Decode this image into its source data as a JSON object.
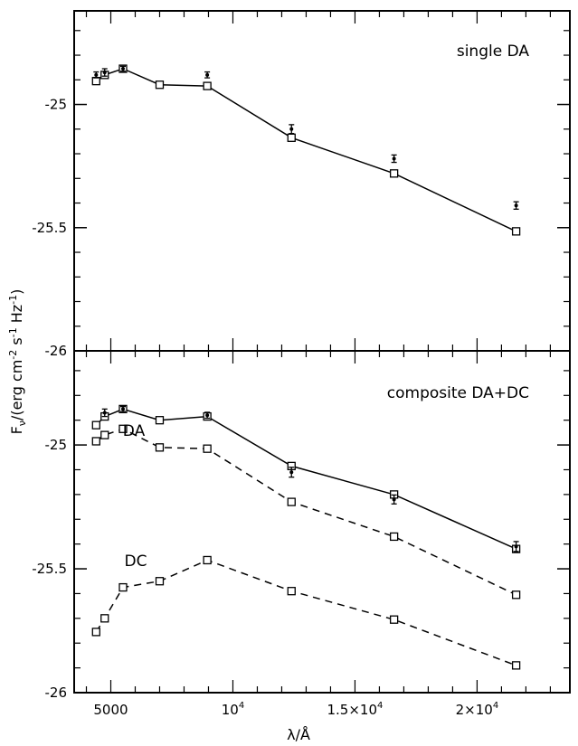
{
  "chart_data": [
    {
      "type": "line",
      "panel": "top",
      "annotation": "single DA",
      "ylim": [
        -26.0,
        -24.62
      ],
      "yticks": [
        -26,
        -25.5,
        -25
      ],
      "ytick_labels": [
        "-26",
        "-25.5",
        "-25"
      ],
      "xlim": [
        3500,
        23800
      ],
      "observed": {
        "x": [
          4400,
          4750,
          5500,
          8950,
          12400,
          16600,
          21600
        ],
        "y": [
          -24.88,
          -24.87,
          -24.855,
          -24.88,
          -25.1,
          -25.22,
          -25.41
        ],
        "err": [
          0.012,
          0.015,
          0.01,
          0.012,
          0.018,
          0.015,
          0.015
        ]
      },
      "series": [
        {
          "name": "",
          "style": "solid",
          "x": [
            4400,
            4750,
            5500,
            7000,
            8950,
            12400,
            16600,
            21600
          ],
          "y": [
            -24.905,
            -24.88,
            -24.855,
            -24.92,
            -24.925,
            -25.135,
            -25.28,
            -25.515
          ]
        }
      ]
    },
    {
      "type": "line",
      "panel": "bottom",
      "annotation": "composite DA+DC",
      "ylim": [
        -26.0,
        -24.62
      ],
      "yticks": [
        -26,
        -25.5,
        -25
      ],
      "ytick_labels": [
        "-26",
        "-25.5",
        "-25"
      ],
      "xlim": [
        3500,
        23800
      ],
      "observed": {
        "x": [
          4750,
          5500,
          8950,
          12400,
          16600,
          21600
        ],
        "y": [
          -24.87,
          -24.855,
          -24.88,
          -25.11,
          -25.22,
          -25.41
        ],
        "err": [
          0.015,
          0.01,
          0.012,
          0.02,
          0.018,
          0.02
        ]
      },
      "series": [
        {
          "name": "",
          "style": "solid",
          "x": [
            4400,
            4750,
            5500,
            7000,
            8950,
            12400,
            16600,
            21600
          ],
          "y": [
            -24.92,
            -24.885,
            -24.855,
            -24.9,
            -24.885,
            -25.085,
            -25.2,
            -25.42
          ]
        },
        {
          "name": "DA",
          "style": "dashed",
          "x": [
            4400,
            4750,
            5500,
            7000,
            8950,
            12400,
            16600,
            21600
          ],
          "y": [
            -24.985,
            -24.96,
            -24.935,
            -25.01,
            -25.015,
            -25.23,
            -25.37,
            -25.605
          ]
        },
        {
          "name": "DC",
          "style": "dashed",
          "x": [
            4400,
            4750,
            5500,
            7000,
            8950,
            12400,
            16600,
            21600
          ],
          "y": [
            -25.755,
            -25.7,
            -25.575,
            -25.55,
            -25.465,
            -25.59,
            -25.705,
            -25.89
          ]
        }
      ]
    }
  ],
  "axes": {
    "xlabel": "λ/Å",
    "ylabel": "F_ν/(erg cm⁻² s⁻¹ Hz⁻¹)",
    "ylabel_main": "F",
    "ylabel_sub": "ν",
    "ylabel_rest": "/(erg cm",
    "ylabel_e1": "-2",
    "ylabel_s": " s",
    "ylabel_e2": "-1",
    "ylabel_hz": " Hz",
    "ylabel_e3": "-1",
    "ylabel_close": ")",
    "xtick_values": [
      5000,
      10000,
      15000,
      20000
    ],
    "xtick_labels": [
      "5000",
      "10⁴",
      "1.5×10⁴",
      "2×10⁴"
    ],
    "xtick_bases": [
      "5000",
      "10",
      "1.5×10",
      "2×10"
    ],
    "xtick_exps": [
      "",
      "4",
      "4",
      "4"
    ]
  }
}
